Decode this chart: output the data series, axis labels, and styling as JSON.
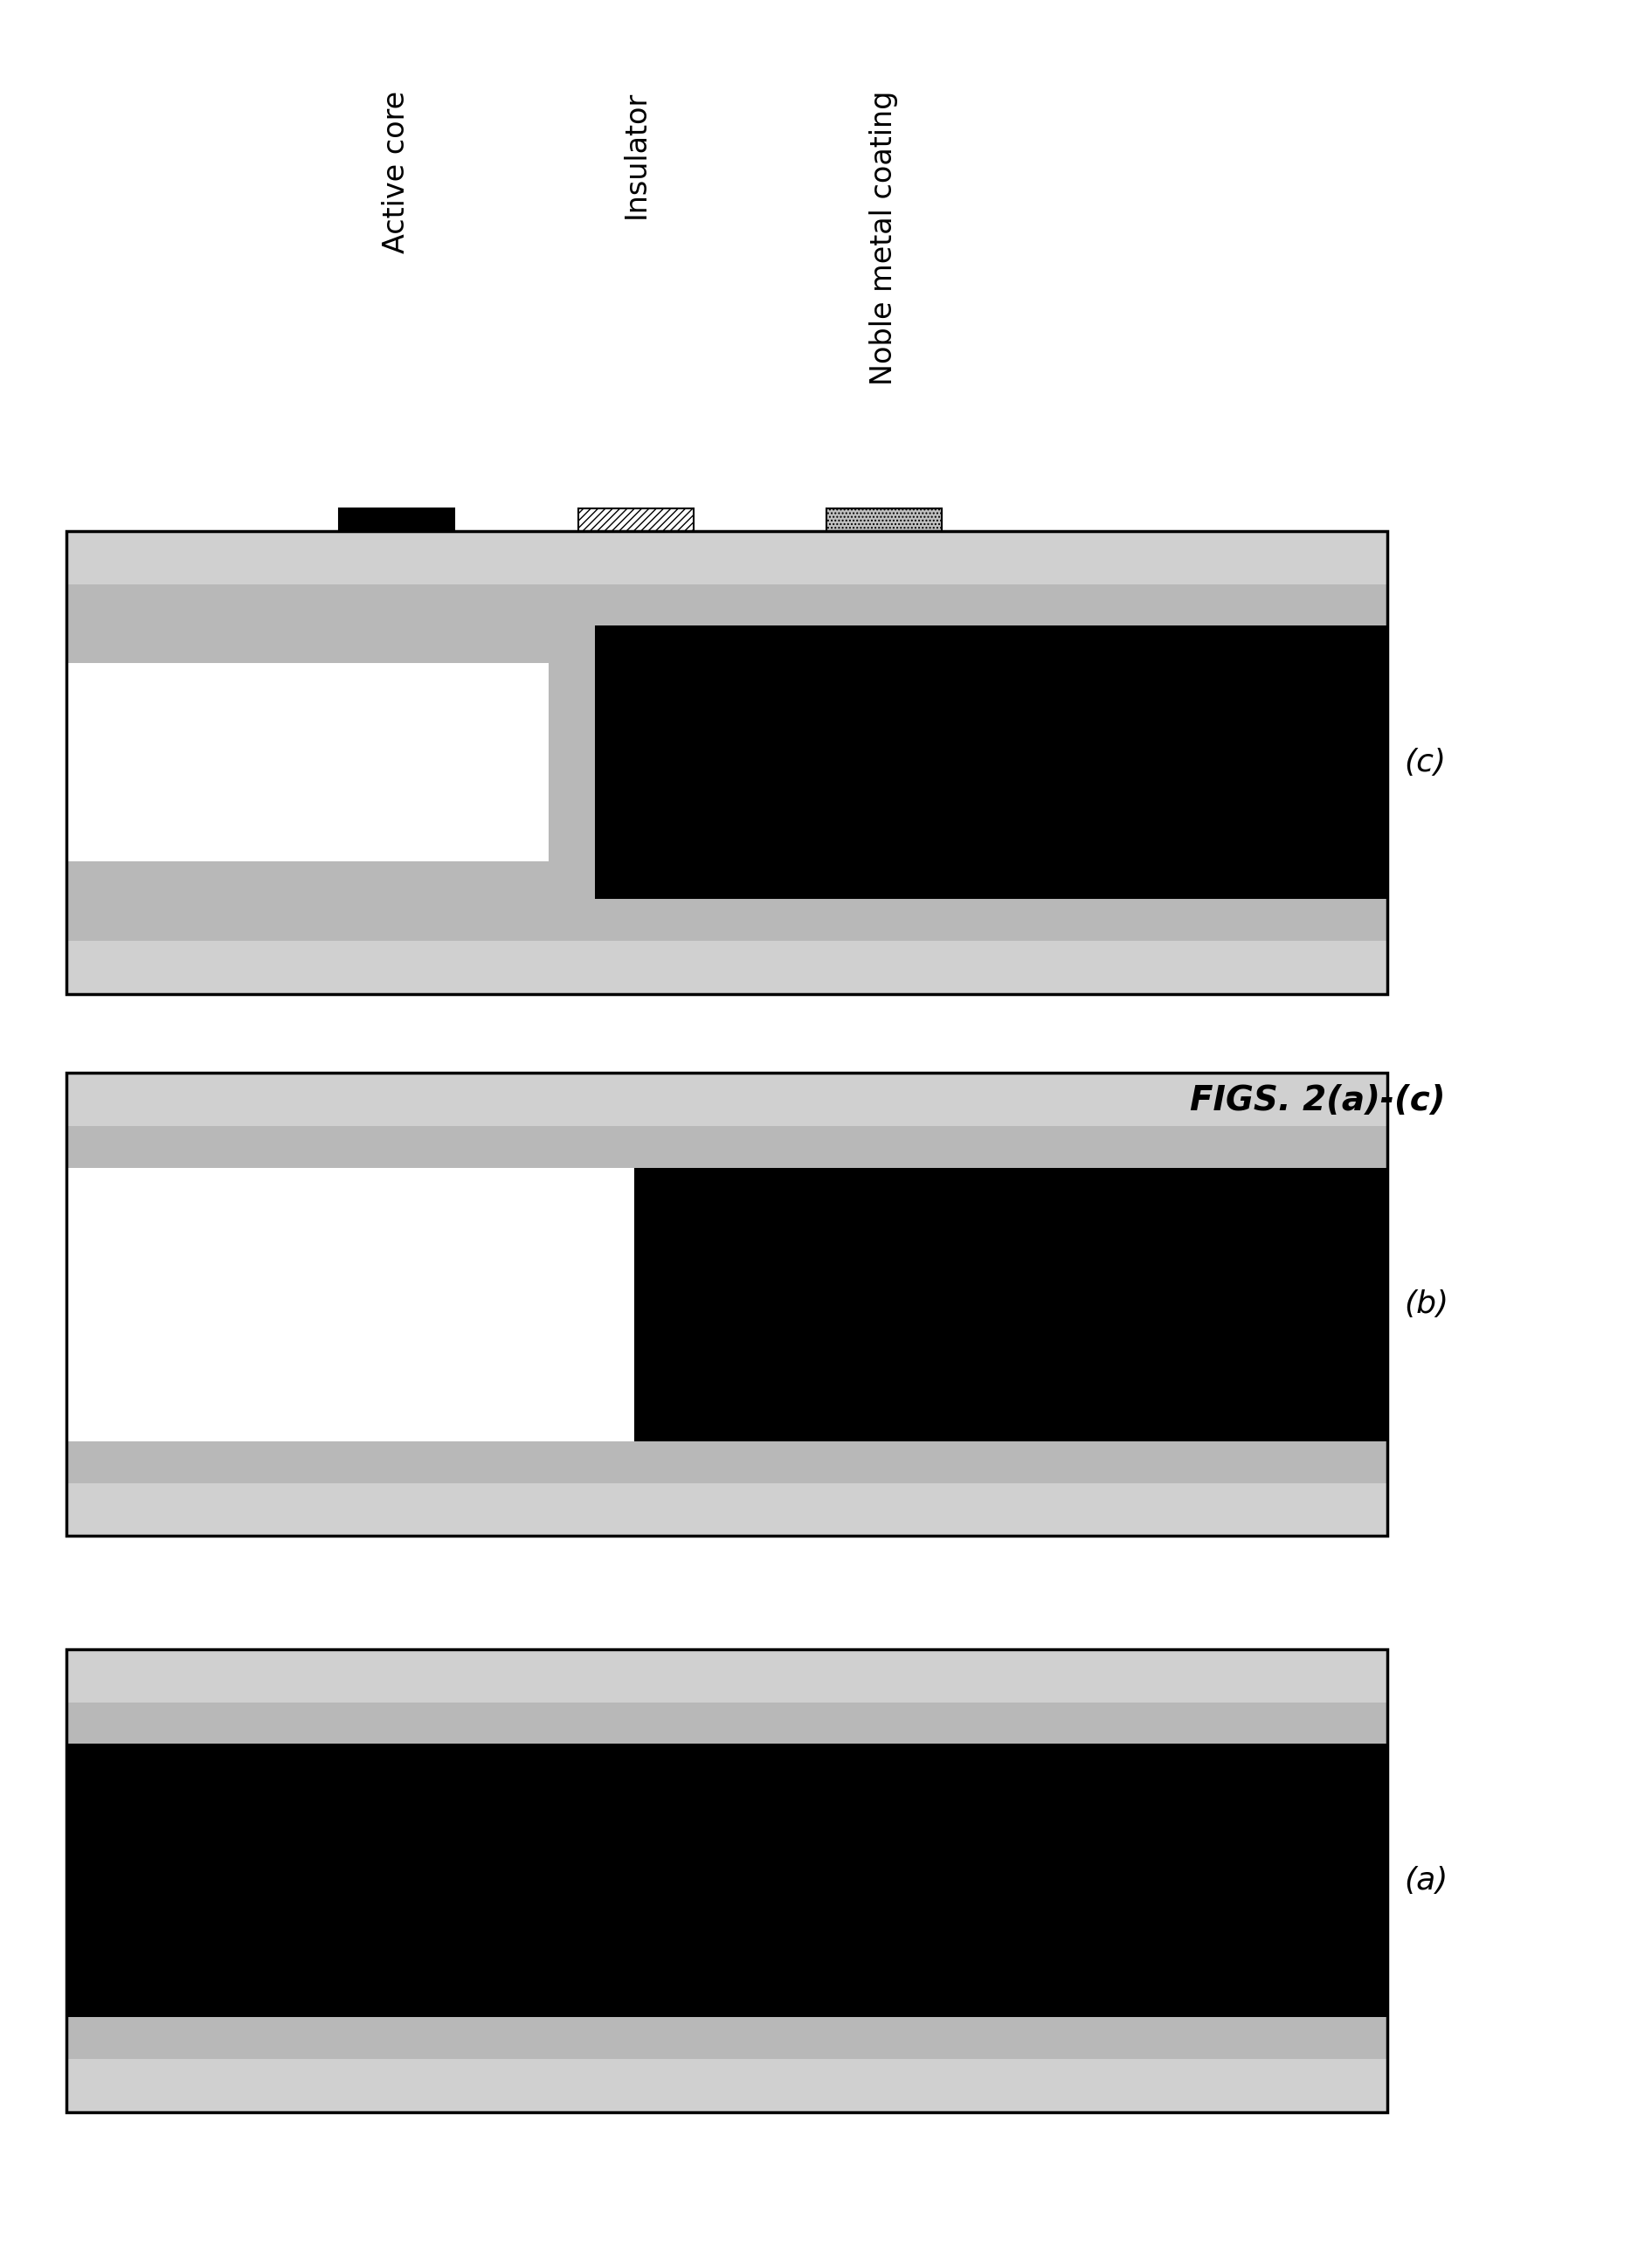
{
  "background_color": "#ffffff",
  "fig_width": 18.91,
  "fig_height": 25.86,
  "legend_labels": [
    "Active core",
    "Insulator",
    "Noble metal coating"
  ],
  "caption": "FIGS. 2(a)-(c)",
  "noble_hatch_facecolor": "#d0d0d0",
  "insulator_gray": "#b8b8b8",
  "active_core_color": "#000000",
  "white_color": "#ffffff",
  "panel_border_lw": 2.5,
  "hatch_pattern_noble": "////",
  "hatch_pattern_insulator": "....",
  "panel_a_label": "(a)",
  "panel_b_label": "(b)",
  "panel_c_label": "(c)",
  "legend_text_fontsize": 24,
  "swatch_size": 0.06,
  "label_fontsize": 26,
  "caption_fontsize": 28
}
